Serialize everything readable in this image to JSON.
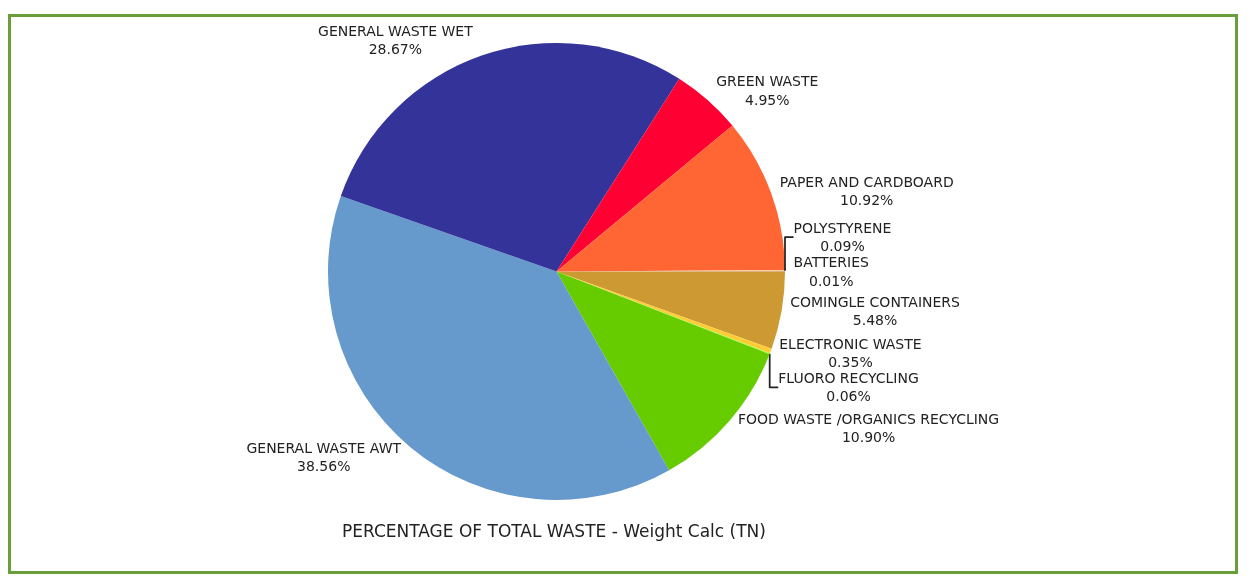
{
  "chart_data": {
    "type": "pie",
    "title": "PERCENTAGE OF TOTAL WASTE - Weight Calc (TN)",
    "categories": [
      "COMINGLE CONTAINERS",
      "ELECTRONIC WASTE",
      "FLUORO RECYCLING",
      "FOOD WASTE /ORGANICS RECYCLING",
      "GENERAL WASTE AWT",
      "GENERAL WASTE WET",
      "GREEN WASTE",
      "PAPER AND CARDBOARD",
      "POLYSTYRENE",
      "BATTERIES"
    ],
    "values": [
      5.48,
      0.35,
      0.06,
      10.9,
      38.56,
      28.67,
      4.95,
      10.92,
      0.09,
      0.01
    ],
    "value_labels": [
      "5.48%",
      "0.35%",
      "0.06%",
      "10.90%",
      "38.56%",
      "28.67%",
      "4.95%",
      "10.92%",
      "0.09%",
      "0.01%"
    ],
    "colors": [
      "#cc9933",
      "#ffcc33",
      "#99ff33",
      "#66cc00",
      "#6699cc",
      "#333399",
      "#ff0033",
      "#ff6633",
      "#ffcc99",
      "#996633"
    ],
    "legend": false
  }
}
